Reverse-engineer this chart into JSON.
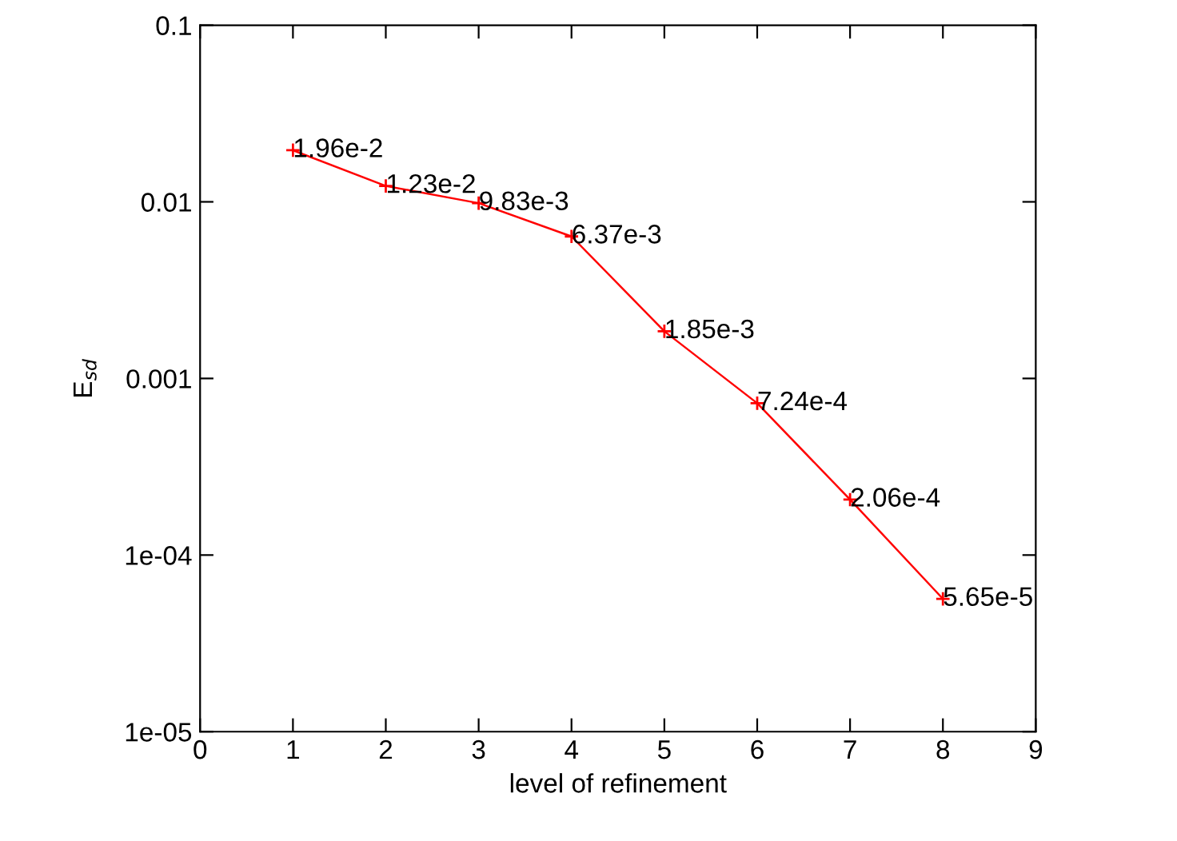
{
  "chart_data": {
    "type": "line",
    "xlabel": "level of refinement",
    "ylabel": "E$_{sd}$",
    "x": [
      1,
      2,
      3,
      4,
      5,
      6,
      7,
      8
    ],
    "series": [
      {
        "color": "#ff0000",
        "values": [
          0.0196,
          0.0123,
          0.00983,
          0.00637,
          0.00185,
          0.000724,
          0.000206,
          5.65e-05
        ],
        "value_labels": [
          "1.96e-2",
          "1.23e-2",
          "9.83e-3",
          "6.37e-3",
          "1.85e-3",
          "7.24e-4",
          "2.06e-4",
          "5.65e-5"
        ]
      }
    ],
    "log": "y",
    "xlim": [
      0,
      9
    ],
    "xticks": [
      0,
      1,
      2,
      3,
      4,
      5,
      6,
      7,
      8,
      9
    ],
    "ylim": [
      1e-05,
      0.1
    ],
    "yticks": [
      {
        "value": 1e-05,
        "label": "1e-05"
      },
      {
        "value": 0.0001,
        "label": "1e-04"
      },
      {
        "value": 0.001,
        "label": "0.001"
      },
      {
        "value": 0.01,
        "label": "0.01"
      },
      {
        "value": 0.1,
        "label": "0.1"
      }
    ],
    "marker": "cross",
    "grid": false,
    "legend": false
  }
}
